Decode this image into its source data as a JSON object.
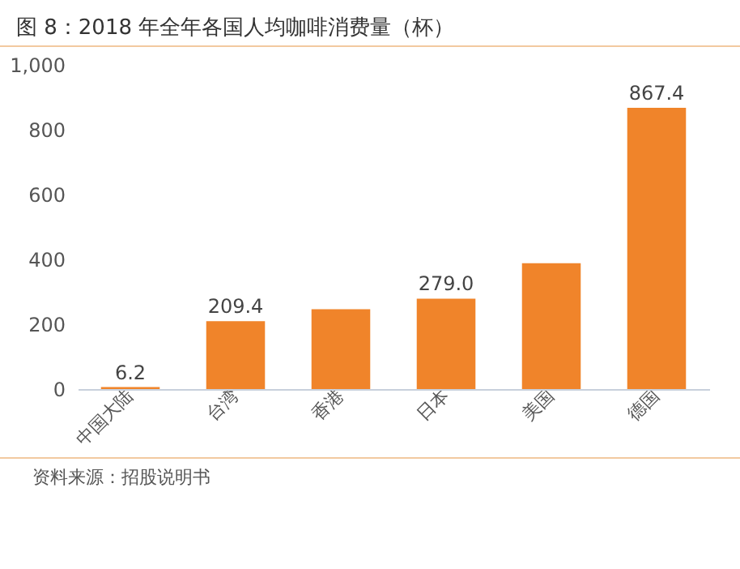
{
  "chart_data": {
    "type": "bar",
    "title": "图 8：2018 年全年各国人均咖啡消费量（杯）",
    "categories": [
      "中国大陆",
      "台湾",
      "香港",
      "日本",
      "美国",
      "德国"
    ],
    "values": [
      6.2,
      209.4,
      246,
      279.0,
      388,
      867.4
    ],
    "value_labels": [
      "6.2",
      "209.4",
      null,
      "279.0",
      null,
      "867.4"
    ],
    "color": "#f0842a",
    "ylim": [
      0,
      1000
    ],
    "yticks": [
      0,
      200,
      400,
      600,
      800,
      {
        "value": 1000,
        "label": "1,000"
      }
    ],
    "grid": false,
    "annotations": [
      "资料来源：招股说明书"
    ]
  }
}
